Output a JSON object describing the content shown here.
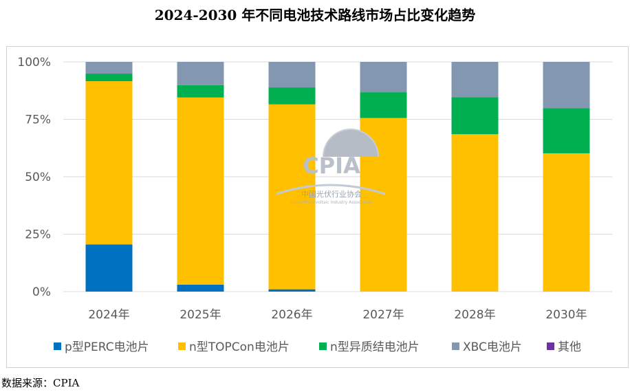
{
  "title": "2024-2030 年不同电池技术路线市场占比变化趋势",
  "source": "数据来源：CPIA",
  "watermark": {
    "logo": "CPIA",
    "name": "中国光伏行业协会",
    "sub": "China Photovoltaic Industry Association"
  },
  "chart_data": {
    "type": "bar",
    "stacked": true,
    "categories": [
      "2024年",
      "2025年",
      "2026年",
      "2027年",
      "2028年",
      "2030年"
    ],
    "y_ticks": [
      "0%",
      "25%",
      "50%",
      "75%",
      "100%"
    ],
    "ylim": [
      0,
      100
    ],
    "grid": true,
    "legend_position": "bottom",
    "series": [
      {
        "name": "p型PERC电池片",
        "color": "#0070c0",
        "values": [
          20.5,
          3.0,
          1.0,
          0,
          0,
          0
        ]
      },
      {
        "name": "n型TOPCon电池片",
        "color": "#ffc000",
        "values": [
          71.1,
          81.5,
          80.5,
          75.6,
          68.5,
          60.2
        ]
      },
      {
        "name": "n型异质结电池片",
        "color": "#00b050",
        "values": [
          3.3,
          5.4,
          7.4,
          11.2,
          16.1,
          19.6
        ]
      },
      {
        "name": "XBC电池片",
        "color": "#8497b0",
        "values": [
          5.1,
          10.1,
          11.1,
          13.2,
          15.4,
          20.2
        ]
      },
      {
        "name": "其他",
        "color": "#7030a0",
        "values": [
          0,
          0,
          0,
          0,
          0,
          0
        ]
      }
    ]
  }
}
